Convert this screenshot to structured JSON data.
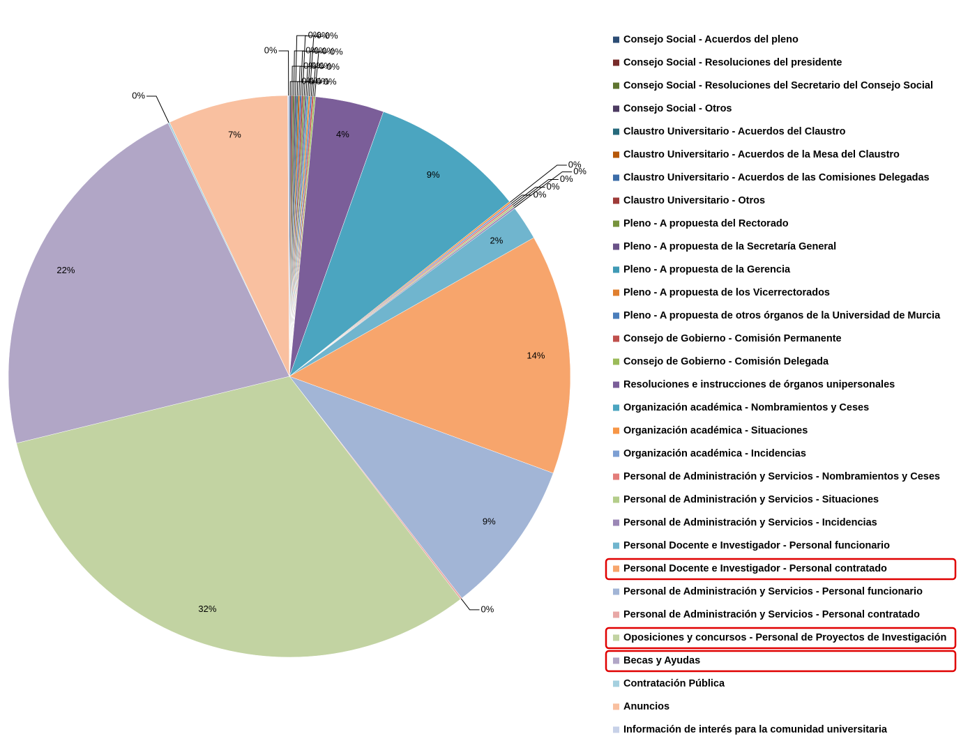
{
  "chart_data": {
    "type": "pie",
    "categories": [
      "Consejo Social - Acuerdos del pleno",
      "Consejo Social - Resoluciones del presidente",
      "Consejo Social - Resoluciones del Secretario del Consejo Social",
      "Consejo Social - Otros",
      "Claustro Universitario - Acuerdos del Claustro",
      "Claustro Universitario - Acuerdos de la Mesa del Claustro",
      "Claustro Universitario - Acuerdos de las Comisiones Delegadas",
      "Claustro Universitario - Otros",
      "Pleno - A propuesta del Rectorado",
      "Pleno - A propuesta de la Secretaría General",
      "Pleno - A propuesta de la Gerencia",
      "Pleno - A propuesta de los Vicerrectorados",
      "Pleno - A propuesta de otros órganos de la Universidad de Murcia",
      "Consejo de Gobierno - Comisión Permanente",
      "Consejo de Gobierno - Comisión Delegada",
      "Resoluciones e instrucciones de órganos unipersonales",
      "Organización académica - Nombramientos y Ceses",
      "Organización académica - Situaciones",
      "Organización académica - Incidencias",
      "Personal de Administración y Servicios - Nombramientos y Ceses",
      "Personal de Administración y Servicios - Situaciones",
      "Personal de Administración y Servicios - Incidencias",
      "Personal Docente e Investigador - Personal funcionario",
      "Personal Docente e Investigador - Personal contratado",
      "Personal de Administración y Servicios - Personal funcionario",
      "Personal de Administración y Servicios - Personal contratado",
      "Oposiciones y concursos - Personal de Proyectos de Investigación",
      "Becas y Ayudas",
      "Contratación Pública",
      "Anuncios",
      "Información de interés para la comunidad universitaria"
    ],
    "values": [
      0.1,
      0.1,
      0.1,
      0.1,
      0.1,
      0.1,
      0.1,
      0.1,
      0.1,
      0.1,
      0.1,
      0.1,
      0.1,
      0.1,
      0.1,
      4,
      9,
      0.1,
      0.1,
      0.1,
      0.1,
      0.1,
      2,
      14,
      9,
      0.1,
      32,
      22,
      0.1,
      7,
      0.1
    ],
    "value_labels": [
      "0%",
      "0%",
      "0%",
      "0%",
      "0%",
      "0%",
      "0%",
      "0%",
      "0%",
      "0%",
      "0%",
      "0%",
      "0%",
      "0%",
      "0%",
      "4%",
      "9%",
      "0%",
      "0%",
      "0%",
      "0%",
      "0%",
      "2%",
      "14%",
      "9%",
      "0%",
      "32%",
      "22%",
      "0%",
      "7%",
      "0%"
    ],
    "colors": [
      "#2C4D75",
      "#772C2A",
      "#5F7530",
      "#4D3B62",
      "#276A7C",
      "#B65708",
      "#3C6DA8",
      "#9E3B38",
      "#77933C",
      "#6A5288",
      "#3F9AB5",
      "#E07F2E",
      "#4A7EBB",
      "#C0504D",
      "#9BBB59",
      "#7B5E99",
      "#4BA5C0",
      "#F79646",
      "#7D9FD3",
      "#E37D7A",
      "#B4CD8A",
      "#9B87B6",
      "#70B5CE",
      "#F7A56C",
      "#A2B5D6",
      "#E8A8A6",
      "#C2D3A2",
      "#B1A6C6",
      "#A5D0DF",
      "#F9C0A0",
      "#C7D1E8"
    ],
    "legend": "right"
  }
}
